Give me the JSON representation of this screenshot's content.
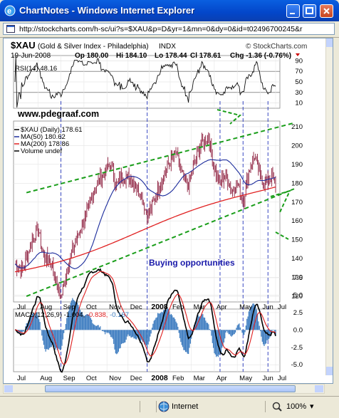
{
  "window": {
    "title": "ChartNotes - Windows Internet Explorer",
    "url": "http://stockcharts.com/h-sc/ui?s=$XAU&p=D&yr=1&mn=0&dy=0&id=t02496700245&r",
    "status_zone": "Internet",
    "zoom": "100%",
    "zoom_arrow": "▾"
  },
  "header": {
    "symbol": "$XAU",
    "name": "(Gold & Silver Index - Philadelphia)",
    "exchange": "INDX",
    "brand": "© StockCharts.com",
    "date": "19-Jun-2008",
    "open": "Op 180.00",
    "high": "Hi 184.10",
    "low": "Lo 178.44",
    "close": "Cl 178.61",
    "change": "Chg -1.36 (-0.76%)"
  },
  "rsi": {
    "label": "RSI(14) 48.16",
    "ticks": [
      "90",
      "70",
      "50",
      "30",
      "10"
    ]
  },
  "price": {
    "watermark": "www.pdegraaf.com",
    "legend": [
      "$XAU (Daily) 178.61",
      "MA(50) 180.62",
      "MA(200) 178.86",
      "Volume undef"
    ],
    "annotation": "Buying opportunities",
    "ticks": [
      "210",
      "200",
      "190",
      "180",
      "170",
      "160",
      "150",
      "140",
      "130",
      "120"
    ],
    "colors": {
      "candle": "#8b1a3a",
      "ma50": "#1c2c9c",
      "ma200": "#e02020",
      "trend": "#1a9e1a",
      "vline": "#2233bb"
    }
  },
  "macd": {
    "label_prefix": "MACD(12,26,9)",
    "value1": "-1.004,",
    "value2": "-0.838,",
    "value3": "-0.167",
    "ticks": [
      "7.5",
      "5.0",
      "2.5",
      "0.0",
      "-2.5",
      "-5.0"
    ]
  },
  "months": [
    "Jul",
    "Aug",
    "Sep",
    "Oct",
    "Nov",
    "Dec",
    "2008",
    "Feb",
    "Mar",
    "Apr",
    "May",
    "Jun",
    "Jul"
  ],
  "chart_data": {
    "type": "line",
    "title": "$XAU (Gold & Silver Index - Philadelphia)",
    "x": [
      "Jul",
      "Aug",
      "Sep",
      "Oct",
      "Nov",
      "Dec",
      "2008",
      "Feb",
      "Mar",
      "Apr",
      "May",
      "Jun",
      "Jul"
    ],
    "series": [
      {
        "name": "$XAU (Daily)",
        "values": [
          137,
          146,
          128,
          168,
          185,
          170,
          180,
          198,
          205,
          182,
          175,
          186,
          178.61
        ]
      },
      {
        "name": "MA(50)",
        "values": [
          140,
          141,
          138,
          150,
          168,
          172,
          175,
          183,
          192,
          188,
          182,
          180,
          180.62
        ]
      },
      {
        "name": "MA(200)",
        "values": [
          133,
          135,
          137,
          140,
          146,
          152,
          158,
          165,
          171,
          176,
          178,
          179,
          178.86
        ]
      }
    ],
    "ylim": [
      120,
      210
    ],
    "indicators": {
      "rsi_last": 48.16,
      "macd_last": [
        -1.004,
        -0.838,
        -0.167
      ]
    }
  }
}
